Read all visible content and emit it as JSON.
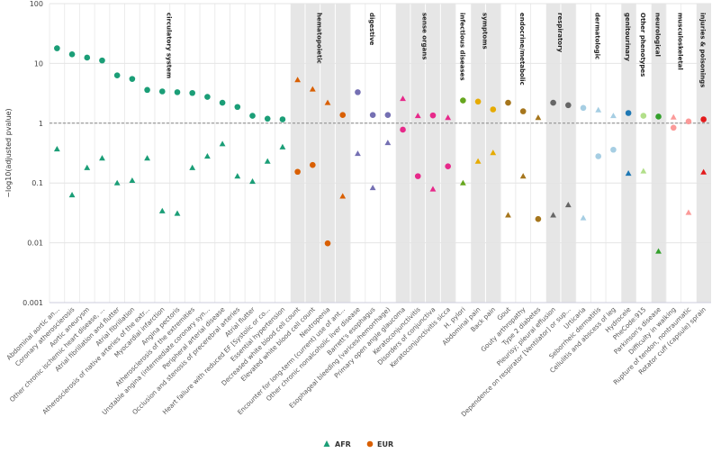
{
  "chart_data": {
    "type": "scatter",
    "title": "",
    "xlabel": "",
    "ylabel": "−log10(adjusted pvalue)",
    "yscale": "log",
    "ylim": [
      0.001,
      100
    ],
    "yticks": [
      {
        "v": 100,
        "label": "100"
      },
      {
        "v": 10,
        "label": "10"
      },
      {
        "v": 1,
        "label": "1"
      },
      {
        "v": 0.1,
        "label": "0.1"
      },
      {
        "v": 0.01,
        "label": "0.01"
      },
      {
        "v": 0.001,
        "label": "0.001"
      }
    ],
    "threshold": 1,
    "legend": {
      "placement": "bottom-center",
      "entries": [
        {
          "name": "AFR",
          "marker": "triangle"
        },
        {
          "name": "EUR",
          "marker": "circle"
        }
      ]
    },
    "groups": [
      {
        "name": "circulatory system",
        "color": "#1b9e77",
        "shaded": false,
        "items": [
          {
            "label": "Abdominal aortic an...",
            "EUR": 17.9,
            "AFR": 0.37
          },
          {
            "label": "Coronary atherosclerosis",
            "EUR": 14.2,
            "AFR": 0.063
          },
          {
            "label": "Aortic aneurysm",
            "EUR": 12.5,
            "AFR": 0.18
          },
          {
            "label": "Other chronic ischemic heart disease, ...",
            "EUR": 11.2,
            "AFR": 0.26
          },
          {
            "label": "Atrial fibrillation and flutter",
            "EUR": 6.3,
            "AFR": 0.1
          },
          {
            "label": "Atrial fibrillation",
            "EUR": 5.5,
            "AFR": 0.11
          },
          {
            "label": "Atherosclerosis of native arteries of the extr...",
            "EUR": 3.6,
            "AFR": 0.26
          },
          {
            "label": "Myocardial infarction",
            "EUR": 3.4,
            "AFR": 0.034
          },
          {
            "label": "Angina pectoris",
            "EUR": 3.3,
            "AFR": 0.031
          },
          {
            "label": "Atherosclerosis of the extremities",
            "EUR": 3.2,
            "AFR": 0.18
          },
          {
            "label": "Unstable angina (intermediate coronary syn...",
            "EUR": 2.76,
            "AFR": 0.28
          },
          {
            "label": "Peripheral arterial disease",
            "EUR": 2.2,
            "AFR": 0.45
          },
          {
            "label": "Occlusion and stenosis of precerebral arteries",
            "EUR": 1.87,
            "AFR": 0.13
          },
          {
            "label": "Atrial flutter",
            "EUR": 1.33,
            "AFR": 0.106
          },
          {
            "label": "Heart failure with reduced EF [Systolic or co...",
            "EUR": 1.19,
            "AFR": 0.23
          },
          {
            "label": "Essential hypertension",
            "EUR": 1.16,
            "AFR": 0.4
          }
        ]
      },
      {
        "name": "hematopoietic",
        "color": "#d95f02",
        "shaded": true,
        "items": [
          {
            "label": "Decreased white blood cell count",
            "EUR": 0.154,
            "AFR": 5.3
          },
          {
            "label": "Elevated white blood cell count",
            "EUR": 0.2,
            "AFR": 3.7
          },
          {
            "label": "Neutropenia",
            "EUR": 0.0098,
            "AFR": 2.2
          },
          {
            "label": "Encounter for long-term (current) use of ant...",
            "EUR": 1.37,
            "AFR": 0.06
          }
        ]
      },
      {
        "name": "digestive",
        "color": "#7570b3",
        "shaded": false,
        "items": [
          {
            "label": "Other chronic nonalcoholic liver disease",
            "EUR": 3.3,
            "AFR": 0.31
          },
          {
            "label": "Barrett's esophagus",
            "EUR": 1.37,
            "AFR": 0.083
          },
          {
            "label": "Esophageal bleeding (varices/hemorrhage)",
            "EUR": 1.37,
            "AFR": 0.47
          }
        ]
      },
      {
        "name": "sense organs",
        "color": "#e7298a",
        "shaded": true,
        "items": [
          {
            "label": "Primary open angle glaucoma",
            "EUR": 0.78,
            "AFR": 2.57
          },
          {
            "label": "Keratoconjunctivitis",
            "EUR": 0.13,
            "AFR": 1.33
          },
          {
            "label": "Disorders of conjunctiva",
            "EUR": 1.35,
            "AFR": 0.079
          },
          {
            "label": "Keratoconjunctivitis sicca",
            "EUR": 0.19,
            "AFR": 1.24
          }
        ]
      },
      {
        "name": "infectious diseases",
        "color": "#66a61e",
        "shaded": false,
        "items": [
          {
            "label": "H. pylori",
            "EUR": 2.4,
            "AFR": 0.1
          }
        ]
      },
      {
        "name": "symptoms",
        "color": "#e6ab02",
        "shaded": true,
        "items": [
          {
            "label": "Abdominal pain",
            "EUR": 2.3,
            "AFR": 0.23
          },
          {
            "label": "Back pain",
            "EUR": 1.7,
            "AFR": 0.32
          }
        ]
      },
      {
        "name": "endocrine/metabolic",
        "color": "#a6761d",
        "shaded": false,
        "items": [
          {
            "label": "Gout",
            "EUR": 2.2,
            "AFR": 0.029
          },
          {
            "label": "Gouty arthropathy",
            "EUR": 1.58,
            "AFR": 0.13
          },
          {
            "label": "Type 2 diabetes",
            "EUR": 0.025,
            "AFR": 1.24
          }
        ]
      },
      {
        "name": "respiratory",
        "color": "#666666",
        "shaded": true,
        "items": [
          {
            "label": "Pleurisy; pleural effusion",
            "EUR": 2.2,
            "AFR": 0.029
          },
          {
            "label": "Dependence on respirator [Ventilator] or sup...",
            "EUR": 2.0,
            "AFR": 0.043
          }
        ]
      },
      {
        "name": "dermatologic",
        "color": "#a6cee3",
        "shaded": false,
        "items": [
          {
            "label": "Urticaria",
            "EUR": 1.8,
            "AFR": 0.026
          },
          {
            "label": "Seborrheic dermatitis",
            "EUR": 0.28,
            "AFR": 1.66
          },
          {
            "label": "Cellulitis and abscess of leg",
            "EUR": 0.36,
            "AFR": 1.33
          }
        ]
      },
      {
        "name": "genitourinary",
        "color": "#1f78b4",
        "shaded": true,
        "items": [
          {
            "label": "Hydrocele",
            "EUR": 1.48,
            "AFR": 0.145
          }
        ]
      },
      {
        "name": "Other phenotypes",
        "color": "#b2df8a",
        "shaded": false,
        "items": [
          {
            "label": "PheCode:915",
            "EUR": 1.33,
            "AFR": 0.158
          }
        ]
      },
      {
        "name": "neurological",
        "color": "#33a02c",
        "shaded": true,
        "items": [
          {
            "label": "Parkinson's disease",
            "EUR": 1.29,
            "AFR": 0.0072
          }
        ]
      },
      {
        "name": "musculoskeletal",
        "color": "#fb9a99",
        "shaded": false,
        "items": [
          {
            "label": "Difficulty in walking",
            "EUR": 0.84,
            "AFR": 1.26
          },
          {
            "label": "Rupture of tendon, nontraumatic",
            "EUR": 1.07,
            "AFR": 0.032
          }
        ]
      },
      {
        "name": "injuries & poisonings",
        "color": "#e31a1c",
        "shaded": true,
        "items": [
          {
            "label": "Rotator cuff (capsule) sprain",
            "EUR": 1.16,
            "AFR": 0.152
          }
        ]
      }
    ]
  }
}
